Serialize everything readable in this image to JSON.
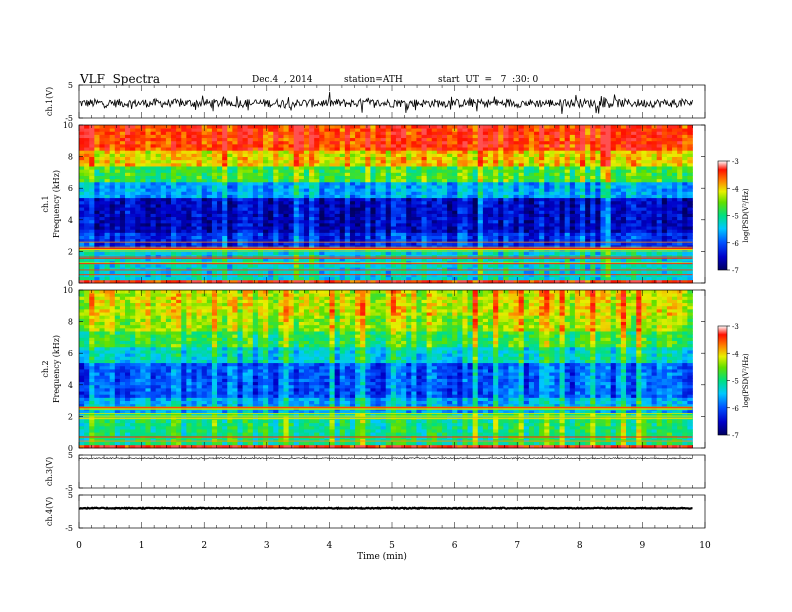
{
  "header": {
    "title": "VLF  Spectra",
    "date": "Dec.4  , 2014",
    "station": "station=ATH",
    "start": "start  UT  =   7  :30: 0"
  },
  "chart_data": [
    {
      "type": "line",
      "panel": "ch1-waveform",
      "ylabel": "ch.1(V)",
      "yticks": [
        "5",
        "-5"
      ],
      "ylim": [
        -5,
        5
      ],
      "xlim": [
        0,
        10
      ],
      "data_extent_x": [
        0,
        9.8
      ],
      "approx_level": -0.5,
      "approx_amplitude": 1.3
    },
    {
      "type": "heatmap",
      "panel": "ch1-spectrogram",
      "ylabel": "ch.1\nFrequency  (kHz)",
      "ylabel_lines": [
        "ch.1",
        "Frequency  (kHz)"
      ],
      "yticks": [
        "0",
        "2",
        "4",
        "6",
        "8",
        "10"
      ],
      "ylim": [
        0,
        10
      ],
      "xlim": [
        0,
        10
      ],
      "data_extent_x": [
        0,
        9.8
      ],
      "colorbar": {
        "label": "log(PSD(V²/Hz)",
        "ticks": [
          "-3",
          "-4",
          "-5",
          "-6",
          "-7"
        ],
        "range": [
          -7,
          -3
        ]
      },
      "band_levels_by_frequency_kHz": [
        {
          "f": [
            0,
            0.3
          ],
          "level": -3.3
        },
        {
          "f": [
            0.3,
            2.2
          ],
          "level": -5.3
        },
        {
          "f": [
            2.2,
            3.2
          ],
          "level": -6.2
        },
        {
          "f": [
            3.2,
            5.5
          ],
          "level": -6.5
        },
        {
          "f": [
            5.5,
            6.5
          ],
          "level": -5.6
        },
        {
          "f": [
            6.5,
            7.5
          ],
          "level": -4.7
        },
        {
          "f": [
            7.5,
            8.5
          ],
          "level": -4.0
        },
        {
          "f": [
            8.5,
            10
          ],
          "level": -3.4
        }
      ]
    },
    {
      "type": "heatmap",
      "panel": "ch2-spectrogram",
      "ylabel": "ch.2\nFrequency  (kHz)",
      "ylabel_lines": [
        "ch.2",
        "Frequency  (kHz)"
      ],
      "yticks": [
        "0",
        "2",
        "4",
        "6",
        "8",
        "10"
      ],
      "ylim": [
        0,
        10
      ],
      "xlim": [
        0,
        10
      ],
      "data_extent_x": [
        0,
        9.8
      ],
      "colorbar": {
        "label": "log(PSD(V²/Hz)",
        "ticks": [
          "-3",
          "-4",
          "-5",
          "-6",
          "-7"
        ],
        "range": [
          -7,
          -3
        ]
      },
      "band_levels_by_frequency_kHz": [
        {
          "f": [
            0,
            0.3
          ],
          "level": -3.3
        },
        {
          "f": [
            0.3,
            2.2
          ],
          "level": -5.0
        },
        {
          "f": [
            2.2,
            3.2
          ],
          "level": -5.6
        },
        {
          "f": [
            3.2,
            5.5
          ],
          "level": -6.0
        },
        {
          "f": [
            5.5,
            6.5
          ],
          "level": -5.3
        },
        {
          "f": [
            6.5,
            7.5
          ],
          "level": -4.8
        },
        {
          "f": [
            7.5,
            8.5
          ],
          "level": -4.4
        },
        {
          "f": [
            8.5,
            10
          ],
          "level": -4.2
        }
      ]
    },
    {
      "type": "line",
      "panel": "ch3-waveform",
      "ylabel": "ch.3(V)",
      "yticks": [
        "5",
        "-5"
      ],
      "ylim": [
        -5,
        5
      ],
      "xlim": [
        0,
        10
      ],
      "data_extent_x": [
        0,
        9.8
      ],
      "approx_level": 4.0,
      "approx_amplitude": 0.2
    },
    {
      "type": "line",
      "panel": "ch4-waveform",
      "ylabel": "ch.4(V)",
      "yticks": [
        "5",
        "-5"
      ],
      "ylim": [
        -5,
        5
      ],
      "xlim": [
        0,
        10
      ],
      "data_extent_x": [
        0,
        9.8
      ],
      "approx_level": 1.0,
      "approx_amplitude": 0.15
    }
  ],
  "xaxis": {
    "label": "Time  (min)",
    "ticks": [
      "0",
      "1",
      "2",
      "3",
      "4",
      "5",
      "6",
      "7",
      "8",
      "9",
      "10"
    ]
  }
}
